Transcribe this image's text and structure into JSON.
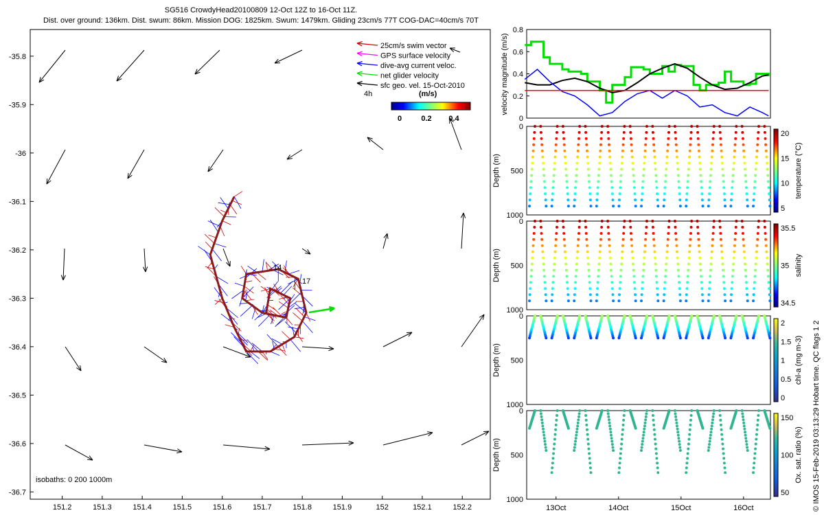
{
  "header": {
    "line1": "SG516 CrowdyHead20100809 12-Oct 12Z to 16-Oct 11Z.",
    "line2": "Dist. over ground: 136km. Dist. swum: 86km. Mission DOG: 1825km. Swum: 1479km. Gliding 23cm/s 77T COG-DAC=40cm/s 70T"
  },
  "map": {
    "legend": [
      "25cm/s swim vector",
      "GPS surface velocity",
      "dive-avg current veloc.",
      "net glider velocity",
      "sfc geo. vel. 15-Oct-2010"
    ],
    "legend_colors": [
      "#cc0000",
      "#ff00ff",
      "#0000ff",
      "#00dd00",
      "#000000"
    ],
    "interval_label": "4h",
    "colorbar_unit": "(m/s)",
    "colorbar_ticks": [
      "0",
      "0.2",
      "0.4"
    ],
    "isobaths": "isobaths: 0   200   1000m",
    "labels_14": "14",
    "labels_17": "17"
  },
  "side_right_text": "© IMOS 15-Feb-2019 03:13:29 Hobart time. QC flags 1  2",
  "chart_data": [
    {
      "type": "scatter",
      "name": "track map",
      "x_ticks": [
        "151.2",
        "151.3",
        "151.4",
        "151.5",
        "151.6",
        "151.7",
        "151.8",
        "151.9",
        "152",
        "152.1",
        "152.2"
      ],
      "y_ticks": [
        "-35.8",
        "-35.9",
        "-36",
        "-36.1",
        "-36.2",
        "-36.3",
        "-36.4",
        "-36.5",
        "-36.6",
        "-36.7"
      ],
      "xlim": [
        151.12,
        152.27
      ],
      "ylim": [
        -36.715,
        -35.745
      ],
      "track": [
        [
          151.63,
          -36.09
        ],
        [
          151.6,
          -36.14
        ],
        [
          151.57,
          -36.21
        ],
        [
          151.6,
          -36.3
        ],
        [
          151.63,
          -36.36
        ],
        [
          151.66,
          -36.41
        ],
        [
          151.72,
          -36.41
        ],
        [
          151.78,
          -36.38
        ],
        [
          151.81,
          -36.33
        ],
        [
          151.79,
          -36.26
        ],
        [
          151.74,
          -36.24
        ],
        [
          151.66,
          -36.25
        ],
        [
          151.65,
          -36.3
        ],
        [
          151.7,
          -36.33
        ],
        [
          151.76,
          -36.34
        ],
        [
          151.77,
          -36.3
        ],
        [
          151.72,
          -36.28
        ],
        [
          151.71,
          -36.33
        ]
      ]
    },
    {
      "type": "line",
      "name": "velocity",
      "ylabel": "velocity magnitude (m/s)",
      "ylim": [
        0,
        0.8
      ],
      "y_ticks": [
        "0",
        "0.2",
        "0.4",
        "0.6",
        "0.8"
      ],
      "series": [
        {
          "color": "#00dd00",
          "x": [
            12.5,
            12.6,
            12.8,
            12.9,
            13.1,
            13.2,
            13.4,
            13.5,
            13.7,
            13.8,
            13.9,
            14.0,
            14.1,
            14.2,
            14.4,
            14.5,
            14.7,
            14.8,
            14.9,
            15.0,
            15.2,
            15.3,
            15.4,
            15.6,
            15.7,
            15.8,
            16.0,
            16.1,
            16.2,
            16.4
          ],
          "values": [
            0.66,
            0.69,
            0.55,
            0.49,
            0.44,
            0.42,
            0.4,
            0.33,
            0.25,
            0.14,
            0.3,
            0.3,
            0.37,
            0.46,
            0.44,
            0.4,
            0.47,
            0.42,
            0.48,
            0.47,
            0.3,
            0.25,
            0.3,
            0.32,
            0.42,
            0.33,
            0.3,
            0.31,
            0.4,
            0.38
          ]
        },
        {
          "color": "#000000",
          "x": [
            12.5,
            12.7,
            12.9,
            13.1,
            13.3,
            13.5,
            13.7,
            13.9,
            14.1,
            14.3,
            14.5,
            14.7,
            14.9,
            15.1,
            15.3,
            15.5,
            15.7,
            15.9,
            16.1,
            16.3,
            16.4
          ],
          "values": [
            0.32,
            0.3,
            0.3,
            0.34,
            0.36,
            0.33,
            0.27,
            0.23,
            0.25,
            0.32,
            0.4,
            0.45,
            0.49,
            0.45,
            0.37,
            0.3,
            0.26,
            0.27,
            0.32,
            0.38,
            0.39
          ]
        },
        {
          "color": "#0000ff",
          "x": [
            12.5,
            12.7,
            12.9,
            13.1,
            13.3,
            13.5,
            13.7,
            13.9,
            14.1,
            14.3,
            14.5,
            14.7,
            14.9,
            15.1,
            15.3,
            15.5,
            15.7,
            15.9,
            16.1,
            16.3,
            16.4
          ],
          "values": [
            0.35,
            0.44,
            0.33,
            0.24,
            0.2,
            0.12,
            0.02,
            0.05,
            0.15,
            0.22,
            0.25,
            0.18,
            0.25,
            0.2,
            0.1,
            0.12,
            0.05,
            0.02,
            0.1,
            0.05,
            0.02
          ]
        },
        {
          "color": "#ff0000",
          "x": [
            12.5,
            16.4
          ],
          "values": [
            0.25,
            0.25
          ]
        }
      ]
    },
    {
      "type": "scatter",
      "name": "temperature",
      "ylabel": "Depth (m)",
      "colorbar_label": "temperature (°C)",
      "colorbar_ticks": [
        "5",
        "10",
        "15",
        "20"
      ],
      "ylim": [
        0,
        1000
      ],
      "y_ticks": [
        "0",
        "500",
        "1000"
      ],
      "gradient": "jet"
    },
    {
      "type": "scatter",
      "name": "salinity",
      "ylabel": "Depth (m)",
      "colorbar_label": "salinity",
      "colorbar_ticks": [
        "34.5",
        "35",
        "35.5"
      ],
      "ylim": [
        0,
        1000
      ],
      "y_ticks": [
        "0",
        "500",
        "1000"
      ],
      "gradient": "jet"
    },
    {
      "type": "scatter",
      "name": "chl-a",
      "ylabel": "Depth (m)",
      "colorbar_label": "chl-a (mg m-3)",
      "colorbar_ticks": [
        "0",
        "0.5",
        "1",
        "1.5",
        "2"
      ],
      "ylim": [
        0,
        1000
      ],
      "y_ticks": [
        "0",
        "500",
        "1000"
      ],
      "gradient": "parula"
    },
    {
      "type": "scatter",
      "name": "oxygen",
      "ylabel": "Depth (m)",
      "colorbar_label": "Ox. sat. ratio (%)",
      "colorbar_ticks": [
        "50",
        "100",
        "150"
      ],
      "ylim": [
        0,
        1000
      ],
      "y_ticks": [
        "0",
        "500",
        "1000"
      ],
      "gradient": "parula",
      "x_ticks": [
        "13Oct",
        "14Oct",
        "15Oct",
        "16Oct"
      ]
    }
  ]
}
